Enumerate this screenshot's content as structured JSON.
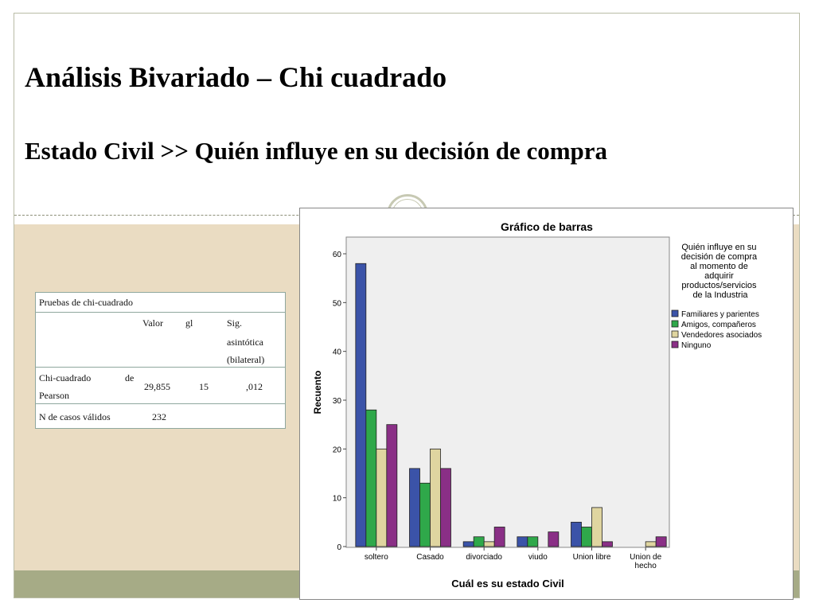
{
  "slide": {
    "title": "Análisis Bivariado – Chi cuadrado",
    "subtitle": "Estado Civil >> Quién influye en su decisión de compra"
  },
  "stats_table": {
    "caption": "Pruebas de chi-cuadrado",
    "headers": {
      "valor": "Valor",
      "gl": "gl",
      "sig_1": "Sig.",
      "sig_2": "asintótica",
      "sig_3": "(bilateral)"
    },
    "row1": {
      "label_1a": "Chi-cuadrado",
      "label_1b": "de",
      "label_2": "Pearson",
      "valor": "29,855",
      "gl": "15",
      "sig": ",012"
    },
    "row2": {
      "label": "N de casos válidos",
      "valor": "232"
    }
  },
  "chart_data": {
    "type": "bar",
    "title": "Gráfico de barras",
    "xlabel": "Cuál es su estado Civil",
    "ylabel": "Recuento",
    "ylim": [
      0,
      60
    ],
    "yticks": [
      0,
      10,
      20,
      30,
      40,
      50,
      60
    ],
    "categories": [
      "soltero",
      "Casado",
      "divorciado",
      "viudo",
      "Union libre",
      "Union de hecho"
    ],
    "legend_title": "Quién influye en su decisión de compra al momento de adquirir productos/servicios de la Industria",
    "legend_position": "right",
    "series": [
      {
        "name": "Familiares y parientes",
        "color": "#3b53a8",
        "values": [
          58,
          16,
          1,
          2,
          5,
          0
        ]
      },
      {
        "name": "Amigos, compañeros",
        "color": "#2fa84a",
        "values": [
          28,
          13,
          2,
          2,
          4,
          0
        ]
      },
      {
        "name": "Vendedores asociados",
        "color": "#dfd5a0",
        "values": [
          20,
          20,
          1,
          0,
          8,
          1
        ]
      },
      {
        "name": "Ninguno",
        "color": "#8a2f86",
        "values": [
          25,
          16,
          4,
          3,
          1,
          2
        ]
      }
    ]
  }
}
